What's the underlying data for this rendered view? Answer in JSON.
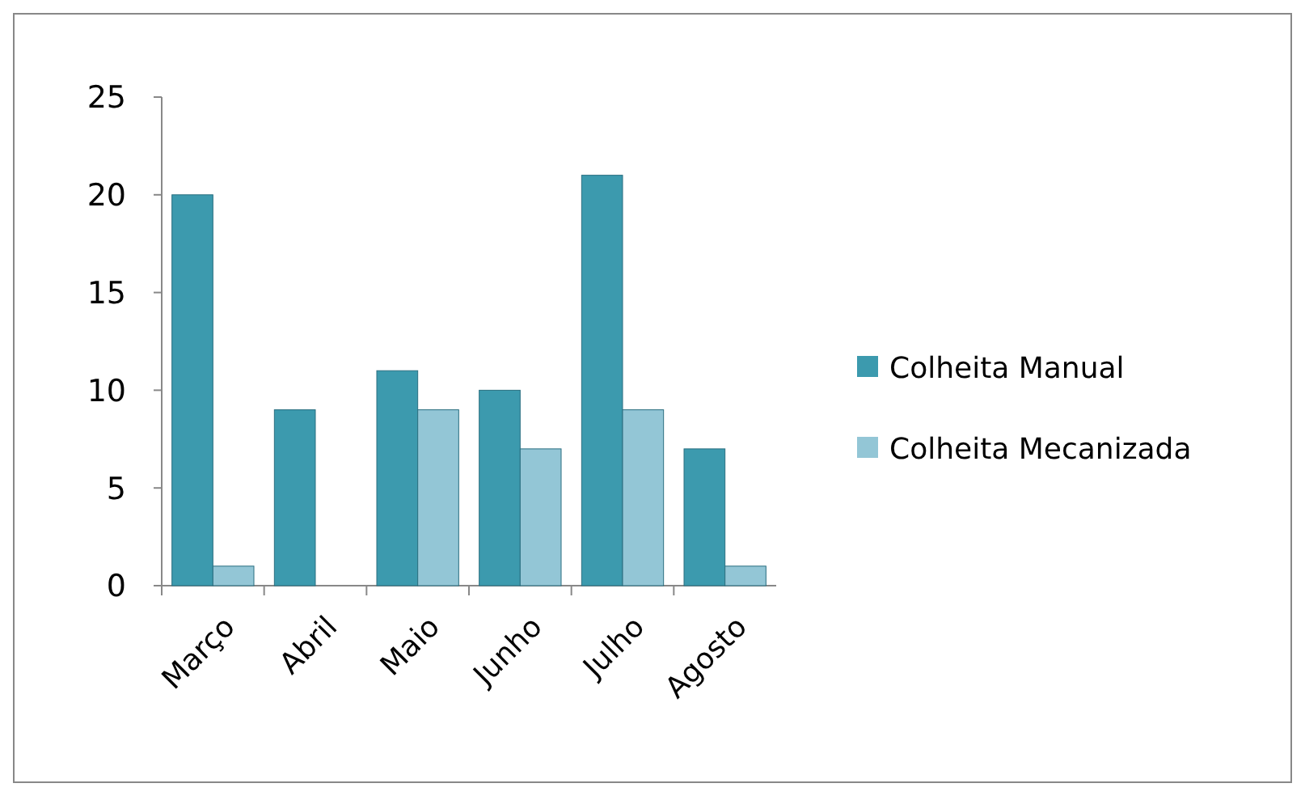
{
  "chart_data": {
    "type": "bar",
    "categories": [
      "Março",
      "Abril",
      "Maio",
      "Junho",
      "Julho",
      "Agosto"
    ],
    "series": [
      {
        "name": "Colheita Manual",
        "color": "#3c9aae",
        "values": [
          20,
          9,
          11,
          10,
          21,
          7
        ]
      },
      {
        "name": "Colheita Mecanizada",
        "color": "#93c6d6",
        "values": [
          1,
          0,
          9,
          7,
          9,
          1
        ]
      }
    ],
    "ylim": [
      0,
      25
    ],
    "yticks": [
      0,
      5,
      10,
      15,
      20,
      25
    ],
    "grid": false,
    "legend": "right"
  }
}
